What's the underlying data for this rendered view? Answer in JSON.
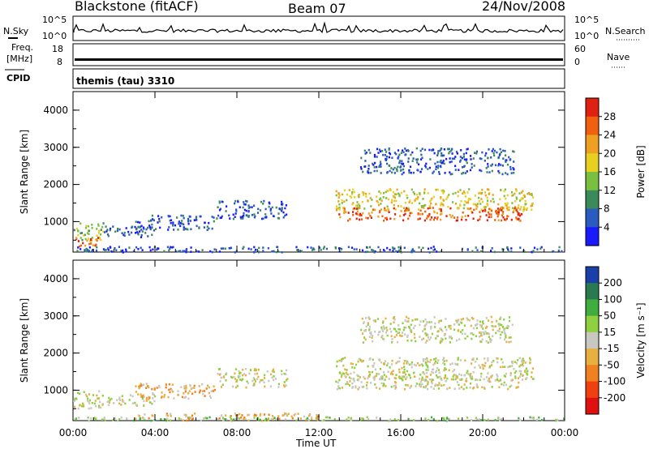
{
  "header": {
    "station": "Blackstone (fitACF)",
    "beam": "Beam 07",
    "date": "24/Nov/2008"
  },
  "strips": {
    "nsky_label": "N.Sky",
    "nsky_ticks": [
      "10^5",
      "10^0"
    ],
    "nsearch_label": "N.Search",
    "nsearch_ticks": [
      "10^5",
      "10^0"
    ],
    "freq_label": "Freq.",
    "freq_unit": "[MHz]",
    "freq_ticks": [
      "18",
      "8"
    ],
    "nave_label": "Nave",
    "nave_ticks": [
      "60",
      "0"
    ],
    "cpid_label": "CPID",
    "cpid_value": "themis (tau) 3310"
  },
  "chart_data": [
    {
      "type": "heatmap",
      "panel": "power",
      "ylabel": "Slant Range [km]",
      "xlabel": "Time UT",
      "xlim": [
        0,
        24
      ],
      "ylim": [
        180,
        4500
      ],
      "yticks": [
        "1000",
        "2000",
        "3000",
        "4000"
      ],
      "xticks": [
        "00:00",
        "04:00",
        "08:00",
        "12:00",
        "16:00",
        "20:00",
        "00:00"
      ],
      "colorbar": {
        "label": "Power [dB]",
        "ticks": [
          "4",
          "8",
          "12",
          "16",
          "20",
          "24",
          "28"
        ],
        "colors": [
          "#1a1aff",
          "#2a5bc0",
          "#3b8a5a",
          "#79c040",
          "#e8d020",
          "#f0a020",
          "#f06010",
          "#e02010"
        ]
      },
      "scatter_regions": [
        {
          "t0": 0.0,
          "t1": 1.5,
          "r0": 500,
          "r1": 1000,
          "level": 3
        },
        {
          "t0": 0.1,
          "t1": 1.2,
          "r0": 300,
          "r1": 600,
          "level": 6
        },
        {
          "t0": 1.5,
          "t1": 4.0,
          "r0": 600,
          "r1": 900,
          "level": 1
        },
        {
          "t0": 3.0,
          "t1": 7.0,
          "r0": 800,
          "r1": 1200,
          "level": 1
        },
        {
          "t0": 7.0,
          "t1": 10.5,
          "r0": 1100,
          "r1": 1600,
          "level": 1
        },
        {
          "t0": 12.8,
          "t1": 22.5,
          "r0": 1300,
          "r1": 1900,
          "level": 4
        },
        {
          "t0": 12.8,
          "t1": 22.0,
          "r0": 1050,
          "r1": 1400,
          "level": 6
        },
        {
          "t0": 14.0,
          "t1": 21.5,
          "r0": 2300,
          "r1": 3000,
          "level": 1
        },
        {
          "t0": 0.0,
          "t1": 24.0,
          "r0": 200,
          "r1": 350,
          "level": 1
        }
      ]
    },
    {
      "type": "heatmap",
      "panel": "velocity",
      "ylabel": "Slant Range [km]",
      "xlabel": "Time UT",
      "xlim": [
        0,
        24
      ],
      "ylim": [
        180,
        4500
      ],
      "yticks": [
        "1000",
        "2000",
        "3000",
        "4000"
      ],
      "xticks": [
        "00:00",
        "04:00",
        "08:00",
        "12:00",
        "16:00",
        "20:00",
        "00:00"
      ],
      "colorbar": {
        "label": "Velocity [m s⁻¹]",
        "ticks": [
          "200",
          "100",
          "50",
          "15",
          "-15",
          "-50",
          "-100",
          "-200"
        ],
        "colors": [
          "#1b3fa8",
          "#2a7a50",
          "#3fae3f",
          "#8fd040",
          "#c8c8c0",
          "#e8b040",
          "#f08020",
          "#f04010",
          "#e01010"
        ]
      },
      "scatter_regions": [
        {
          "t0": 0.0,
          "t1": 1.5,
          "r0": 500,
          "r1": 1000,
          "level": 4
        },
        {
          "t0": 1.5,
          "t1": 4.0,
          "r0": 600,
          "r1": 900,
          "level": 4
        },
        {
          "t0": 3.0,
          "t1": 7.0,
          "r0": 800,
          "r1": 1200,
          "level": 5
        },
        {
          "t0": 7.0,
          "t1": 10.5,
          "r0": 1100,
          "r1": 1600,
          "level": 4
        },
        {
          "t0": 12.8,
          "t1": 22.5,
          "r0": 1300,
          "r1": 1900,
          "level": 4
        },
        {
          "t0": 12.8,
          "t1": 22.0,
          "r0": 1050,
          "r1": 1400,
          "level": 4
        },
        {
          "t0": 14.0,
          "t1": 21.5,
          "r0": 2300,
          "r1": 3000,
          "level": 4
        },
        {
          "t0": 3.0,
          "t1": 12.0,
          "r0": 200,
          "r1": 400,
          "level": 5
        },
        {
          "t0": 0.0,
          "t1": 24.0,
          "r0": 200,
          "r1": 300,
          "level": 3
        }
      ]
    }
  ]
}
